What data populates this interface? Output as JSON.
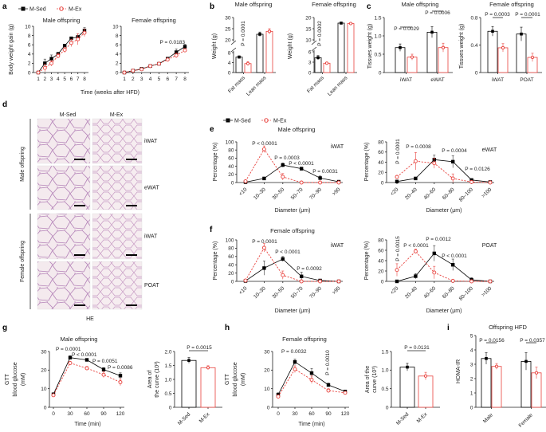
{
  "colors": {
    "sed": "#000000",
    "ex": "#e8413c",
    "histology_bg": "#efe2e8",
    "histology_stain": "#9a5aa8"
  },
  "legend": {
    "sed": "M-Sed",
    "ex": "M-Ex"
  },
  "panel_labels": {
    "a": "a",
    "b": "b",
    "c": "c",
    "d": "d",
    "e": "e",
    "f": "f",
    "g": "g",
    "h": "h",
    "i": "i"
  },
  "histology": {
    "col_headers": [
      "M-Sed",
      "M-Ex"
    ],
    "row_groups": [
      "Male offspring",
      "Female offspring"
    ],
    "tissues": [
      "iWAT",
      "eWAT",
      "iWAT",
      "POAT"
    ],
    "stain": "HE"
  },
  "chart_data": [
    {
      "id": "a-male",
      "type": "line",
      "title": "Male offspring",
      "ylabel": [
        "Body weight gain (g)"
      ],
      "xlabel": "Time (weeks after HFD)",
      "categories": [
        "1",
        "2",
        "3",
        "4",
        "5",
        "6",
        "7",
        "8"
      ],
      "ylim": [
        0,
        10
      ],
      "yticks": [
        "0",
        "2",
        "4",
        "6",
        "8",
        "10"
      ],
      "series": [
        {
          "name": "M-Sed",
          "values": [
            0,
            2,
            3,
            4,
            5.8,
            7.4,
            7.7,
            9.1
          ],
          "err": [
            0,
            0.9,
            0.8,
            0.4,
            0.3,
            0.3,
            0.7,
            0.6
          ]
        },
        {
          "name": "M-Ex",
          "values": [
            0,
            1,
            2,
            3.6,
            4.9,
            6.4,
            7.2,
            8.6
          ],
          "err": [
            0,
            0.8,
            0.6,
            0.5,
            0.6,
            0.8,
            1.2,
            0.8
          ]
        }
      ],
      "annotations": []
    },
    {
      "id": "a-female",
      "type": "line",
      "title": "Female offspring",
      "ylabel": [],
      "categories": [
        "1",
        "2",
        "3",
        "4",
        "5",
        "6",
        "7",
        "8"
      ],
      "ylim": [
        0,
        10
      ],
      "yticks": [
        "0",
        "2",
        "4",
        "6",
        "8",
        "10"
      ],
      "series": [
        {
          "name": "M-Sed",
          "values": [
            0,
            0.4,
            0.8,
            1.4,
            1.9,
            3,
            4.4,
            5.6
          ],
          "err": [
            0,
            0.1,
            0.1,
            0.15,
            0.2,
            0.3,
            0.7,
            0.5
          ]
        },
        {
          "name": "M-Ex",
          "values": [
            0,
            0.4,
            0.7,
            1.4,
            1.9,
            2.8,
            3.7,
            4.8
          ],
          "err": [
            0,
            0.1,
            0.1,
            0.15,
            0.3,
            0.3,
            0.5,
            0.4
          ]
        }
      ],
      "annotations": [
        "P = 0.0183"
      ]
    },
    {
      "id": "b-male",
      "type": "bar",
      "title": "Male offspring",
      "ylabel": [
        "Weight (g)"
      ],
      "broken_axis": true,
      "categories": [
        "Fat mass",
        "Lean mass"
      ],
      "ylim": [
        0,
        30
      ],
      "yticks": [
        "0",
        "4",
        "8",
        "20",
        "25",
        "30"
      ],
      "series": [
        {
          "name": "M-Sed",
          "values": [
            6.2,
            22.5
          ],
          "err": [
            0.5,
            1.0
          ]
        },
        {
          "name": "M-Ex",
          "values": [
            3.6,
            23.8
          ],
          "err": [
            0.8,
            1.2
          ]
        }
      ],
      "annotations": [
        "P = 0.0001"
      ]
    },
    {
      "id": "b-female",
      "type": "bar",
      "title": "Female offspring",
      "ylabel": [
        "Weight (g)"
      ],
      "broken_axis": true,
      "categories": [
        "Fat mass",
        "Lean mass"
      ],
      "ylim": [
        0,
        20
      ],
      "yticks": [
        "0",
        "3",
        "6",
        "10",
        "15",
        "20"
      ],
      "series": [
        {
          "name": "M-Sed",
          "values": [
            4.3,
            17.5
          ],
          "err": [
            0.6,
            0.4
          ]
        },
        {
          "name": "M-Ex",
          "values": [
            2.7,
            17.3
          ],
          "err": [
            0.2,
            0.3
          ]
        }
      ],
      "annotations": [
        "P = 0.0002"
      ]
    },
    {
      "id": "c-male",
      "type": "bar",
      "title": "Male offspring",
      "ylabel": [
        "Tissues weight (g)"
      ],
      "categories": [
        "iWAT",
        "eWAT"
      ],
      "ylim": [
        0,
        1.5
      ],
      "yticks": [
        "0",
        "0.5",
        "1.0",
        "1.5"
      ],
      "series": [
        {
          "name": "M-Sed",
          "values": [
            0.68,
            1.1
          ],
          "err": [
            0.1,
            0.15
          ]
        },
        {
          "name": "M-Ex",
          "values": [
            0.42,
            0.68
          ],
          "err": [
            0.08,
            0.12
          ]
        }
      ],
      "annotations": [
        "P = 0.0029",
        "P = 0.0006"
      ]
    },
    {
      "id": "c-female",
      "type": "bar",
      "title": "Female offspring",
      "ylabel": [
        "Tissues weight (g)"
      ],
      "categories": [
        "iWAT",
        "POAT"
      ],
      "ylim": [
        0,
        0.8
      ],
      "yticks": [
        "0",
        "0.4",
        "0.8"
      ],
      "series": [
        {
          "name": "M-Sed",
          "values": [
            0.6,
            0.56
          ],
          "err": [
            0.07,
            0.1
          ]
        },
        {
          "name": "M-Ex",
          "values": [
            0.36,
            0.22
          ],
          "err": [
            0.06,
            0.06
          ]
        }
      ],
      "annotations": [
        "P = 0.0003",
        "P = 0.0001"
      ]
    },
    {
      "id": "e-iwat",
      "type": "line",
      "title": "Male offspring",
      "tissue": "iWAT",
      "ylabel": [
        "Percentage (%)"
      ],
      "xlabel": "Diameter (μm)",
      "categories": [
        "<10",
        "10–30",
        "30–50",
        "50–70",
        "70–90",
        ">90"
      ],
      "ylim": [
        0,
        100
      ],
      "yticks": [
        "0",
        "20",
        "40",
        "60",
        "80",
        "100"
      ],
      "series": [
        {
          "name": "M-Sed",
          "values": [
            1,
            10,
            43,
            34,
            11,
            2
          ],
          "err": [
            1,
            3,
            5,
            4,
            5,
            1
          ]
        },
        {
          "name": "M-Ex",
          "values": [
            3,
            82,
            14,
            0,
            0,
            0
          ],
          "err": [
            1,
            8,
            8,
            0,
            0,
            0
          ]
        }
      ],
      "annotations": [
        "P < 0.0001",
        "P = 0.0003",
        "P < 0.0001",
        "P = 0.0031"
      ]
    },
    {
      "id": "e-ewat",
      "type": "line",
      "tissue": "eWAT",
      "ylabel": [
        "Percentage (%)"
      ],
      "xlabel": "Diameter (μm)",
      "categories": [
        "<20",
        "20–40",
        "40–60",
        "60–80",
        "80–100",
        ">100"
      ],
      "ylim": [
        0,
        80
      ],
      "yticks": [
        "0",
        "20",
        "40",
        "60",
        "80"
      ],
      "series": [
        {
          "name": "M-Sed",
          "values": [
            2,
            8,
            45,
            41,
            5,
            1
          ],
          "err": [
            1,
            1,
            9,
            12,
            2,
            0.5
          ]
        },
        {
          "name": "M-Ex",
          "values": [
            11,
            42,
            38,
            8,
            1,
            0
          ],
          "err": [
            3,
            17,
            10,
            9,
            1,
            0
          ]
        }
      ],
      "annotations": [
        "P = 0.0001",
        "P = 0.0008",
        "P = 0.0004",
        "P = 0.0126"
      ]
    },
    {
      "id": "f-iwat",
      "type": "line",
      "title": "Female offspring",
      "tissue": "iWAT",
      "ylabel": [
        "Percentage (%)"
      ],
      "xlabel": "Diameter (μm)",
      "categories": [
        "<10",
        "10–30",
        "30–50",
        "50–70",
        "70–90",
        ">90"
      ],
      "ylim": [
        0,
        100
      ],
      "yticks": [
        "0",
        "20",
        "40",
        "60",
        "80",
        "100"
      ],
      "series": [
        {
          "name": "M-Sed",
          "values": [
            1,
            32,
            54,
            12,
            2,
            0
          ],
          "err": [
            1,
            17,
            6,
            10,
            1,
            0
          ]
        },
        {
          "name": "M-Ex",
          "values": [
            2,
            81,
            15,
            0,
            0,
            0
          ],
          "err": [
            1,
            10,
            10,
            0,
            0,
            0
          ]
        }
      ],
      "annotations": [
        "P = 0.0001",
        "P < 0.0001",
        "P = 0.0092"
      ]
    },
    {
      "id": "f-poat",
      "type": "line",
      "tissue": "POAT",
      "ylabel": [
        "Percentage (%)"
      ],
      "xlabel": "Diameter (μm)",
      "categories": [
        "<20",
        "20–40",
        "40–60",
        "60–80",
        "80–100",
        ">100"
      ],
      "ylim": [
        0,
        80
      ],
      "yticks": [
        "0",
        "20",
        "40",
        "60",
        "80"
      ],
      "series": [
        {
          "name": "M-Sed",
          "values": [
            0,
            10,
            54,
            32,
            3,
            0
          ],
          "err": [
            0,
            5,
            15,
            11,
            4,
            0
          ]
        },
        {
          "name": "M-Ex",
          "values": [
            22,
            58,
            17,
            1,
            0,
            0
          ],
          "err": [
            12,
            4,
            12,
            1,
            0,
            0
          ]
        }
      ],
      "annotations": [
        "P = 0.0015",
        "P < 0.0001",
        "P = 0.0012",
        "P < 0.0001"
      ]
    },
    {
      "id": "g-gtt",
      "type": "line",
      "title": "Male offspring",
      "ylabel": [
        "GTT",
        "blood glucose",
        "(mM)"
      ],
      "xlabel": "Time (min)",
      "categories": [
        "0",
        "30",
        "60",
        "90",
        "120"
      ],
      "ylim": [
        0,
        30
      ],
      "yticks": [
        "0",
        "10",
        "20",
        "30"
      ],
      "series": [
        {
          "name": "M-Sed",
          "values": [
            7,
            26.7,
            25.5,
            20.3,
            17
          ],
          "err": [
            0.8,
            1,
            0.5,
            1,
            1.5
          ]
        },
        {
          "name": "M-Ex",
          "values": [
            6.5,
            23.8,
            21,
            17.5,
            13.5
          ],
          "err": [
            0.5,
            0.8,
            1,
            1.5,
            1.8
          ]
        }
      ],
      "annotations": [
        "P = 0.0001",
        "P < 0.0001",
        "P = 0.0051",
        "P = 0.0086"
      ]
    },
    {
      "id": "g-auc",
      "type": "bar",
      "ylabel": [
        "Area of",
        "the curve (10³)"
      ],
      "categories": [
        "M-Sed",
        "M-Ex"
      ],
      "ylim": [
        0,
        2
      ],
      "yticks": [
        "0",
        "0.5",
        "1.0",
        "1.5",
        "2.0"
      ],
      "values": [
        1.68,
        1.42
      ],
      "err": [
        0.1,
        0.07
      ],
      "annotations": [
        "P = 0.0015"
      ]
    },
    {
      "id": "h-gtt",
      "type": "line",
      "title": "Female offspring",
      "ylabel": [
        "GTT",
        "blood glucose",
        "(mM)"
      ],
      "xlabel": "Time (min)",
      "categories": [
        "0",
        "30",
        "60",
        "90",
        "120"
      ],
      "ylim": [
        0,
        30
      ],
      "yticks": [
        "0",
        "10",
        "20",
        "30"
      ],
      "series": [
        {
          "name": "M-Sed",
          "values": [
            6.8,
            24.4,
            18.4,
            12,
            8.5
          ],
          "err": [
            1,
            1.5,
            2.5,
            1,
            0.6
          ]
        },
        {
          "name": "M-Ex",
          "values": [
            5.8,
            20.5,
            14.8,
            9,
            7.8
          ],
          "err": [
            0.8,
            1.8,
            2,
            1,
            0.5
          ]
        }
      ],
      "annotations": [
        "P = 0.0032",
        "P = 0.0010"
      ]
    },
    {
      "id": "h-auc",
      "type": "bar",
      "ylabel": [
        "Area of the",
        "curve (10³)"
      ],
      "categories": [
        "M-Sed",
        "M-Ex"
      ],
      "ylim": [
        0,
        1.5
      ],
      "yticks": [
        "0",
        "0.5",
        "1.0",
        "1.5"
      ],
      "values": [
        1.08,
        0.84
      ],
      "err": [
        0.1,
        0.1
      ],
      "annotations": [
        "P = 0.0131"
      ]
    },
    {
      "id": "i-homa",
      "type": "bar",
      "title": "Offspring HFD",
      "ylabel": [
        "HOMA-IR"
      ],
      "categories": [
        "Male",
        "Female"
      ],
      "ylim": [
        0,
        5
      ],
      "yticks": [
        "0",
        "1",
        "2",
        "3",
        "4",
        "5"
      ],
      "series": [
        {
          "name": "M-Sed",
          "values": [
            3.4,
            3.2
          ],
          "err": [
            0.4,
            0.6
          ]
        },
        {
          "name": "M-Ex",
          "values": [
            2.85,
            2.4
          ],
          "err": [
            0.2,
            0.4
          ]
        }
      ],
      "annotations": [
        "P = 0.0156",
        "P = 0.0357"
      ]
    }
  ]
}
